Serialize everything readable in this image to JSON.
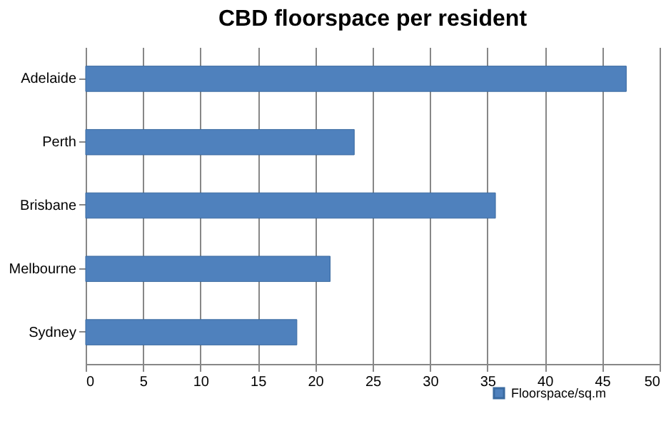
{
  "chart_data": {
    "type": "bar",
    "orientation": "horizontal",
    "title": "CBD floorspace per resident",
    "categories": [
      "Adelaide",
      "Perth",
      "Brisbane",
      "Melbourne",
      "Sydney"
    ],
    "series": [
      {
        "name": "Floorspace/sq.m",
        "color": "#4f81bd",
        "values": [
          47.1,
          23.4,
          35.7,
          21.3,
          18.4
        ]
      }
    ],
    "xlim": [
      0,
      50
    ],
    "xticks": [
      0,
      5,
      10,
      15,
      20,
      25,
      30,
      35,
      40,
      45,
      50
    ],
    "grid": "x",
    "legend": "bottom right"
  }
}
